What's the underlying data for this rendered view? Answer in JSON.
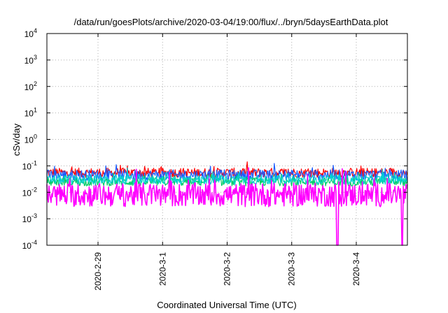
{
  "chart_data": {
    "type": "line",
    "title": "/data/run/goesPlots/archive/2020-03-04/19:00/flux/../bryn/5daysEarthData.plot",
    "xlabel": "Coordinated Universal Time (UTC)",
    "ylabel": "cSv/day",
    "yscale": "log",
    "ylim": [
      0.0001,
      10000
    ],
    "y_ticks": [
      {
        "base": "10",
        "exp": "-4",
        "value": 0.0001
      },
      {
        "base": "10",
        "exp": "-3",
        "value": 0.001
      },
      {
        "base": "10",
        "exp": "-2",
        "value": 0.01
      },
      {
        "base": "10",
        "exp": "-1",
        "value": 0.1
      },
      {
        "base": "10",
        "exp": "0",
        "value": 1
      },
      {
        "base": "10",
        "exp": "1",
        "value": 10
      },
      {
        "base": "10",
        "exp": "2",
        "value": 100
      },
      {
        "base": "10",
        "exp": "3",
        "value": 1000
      },
      {
        "base": "10",
        "exp": "4",
        "value": 10000
      }
    ],
    "xlim": [
      "2020-02-28T05:00",
      "2020-03-04T19:00"
    ],
    "x_ticks": [
      "2020-2-29",
      "2020-3-1",
      "2020-3-2",
      "2020-3-3",
      "2020-3-4"
    ],
    "x_tick_dates": [
      "2020-02-29",
      "2020-03-01",
      "2020-03-02",
      "2020-03-03",
      "2020-03-04"
    ],
    "grid": true,
    "legend": "none",
    "series": [
      {
        "color": "#ff0000",
        "level": 0.055,
        "noise": 0.18,
        "dips": []
      },
      {
        "color": "#1a5cff",
        "level": 0.045,
        "noise": 0.2,
        "dips": []
      },
      {
        "color": "#00cc66",
        "level": 0.025,
        "noise": 0.16,
        "dips": []
      },
      {
        "color": "#00d0d0",
        "level": 0.03,
        "noise": 0.18,
        "dips": []
      },
      {
        "color": "#ff00ff",
        "level": 0.008,
        "noise": 0.45,
        "dips": [
          "2020-03-03T17:00",
          "2020-03-04T17:00"
        ]
      }
    ]
  }
}
